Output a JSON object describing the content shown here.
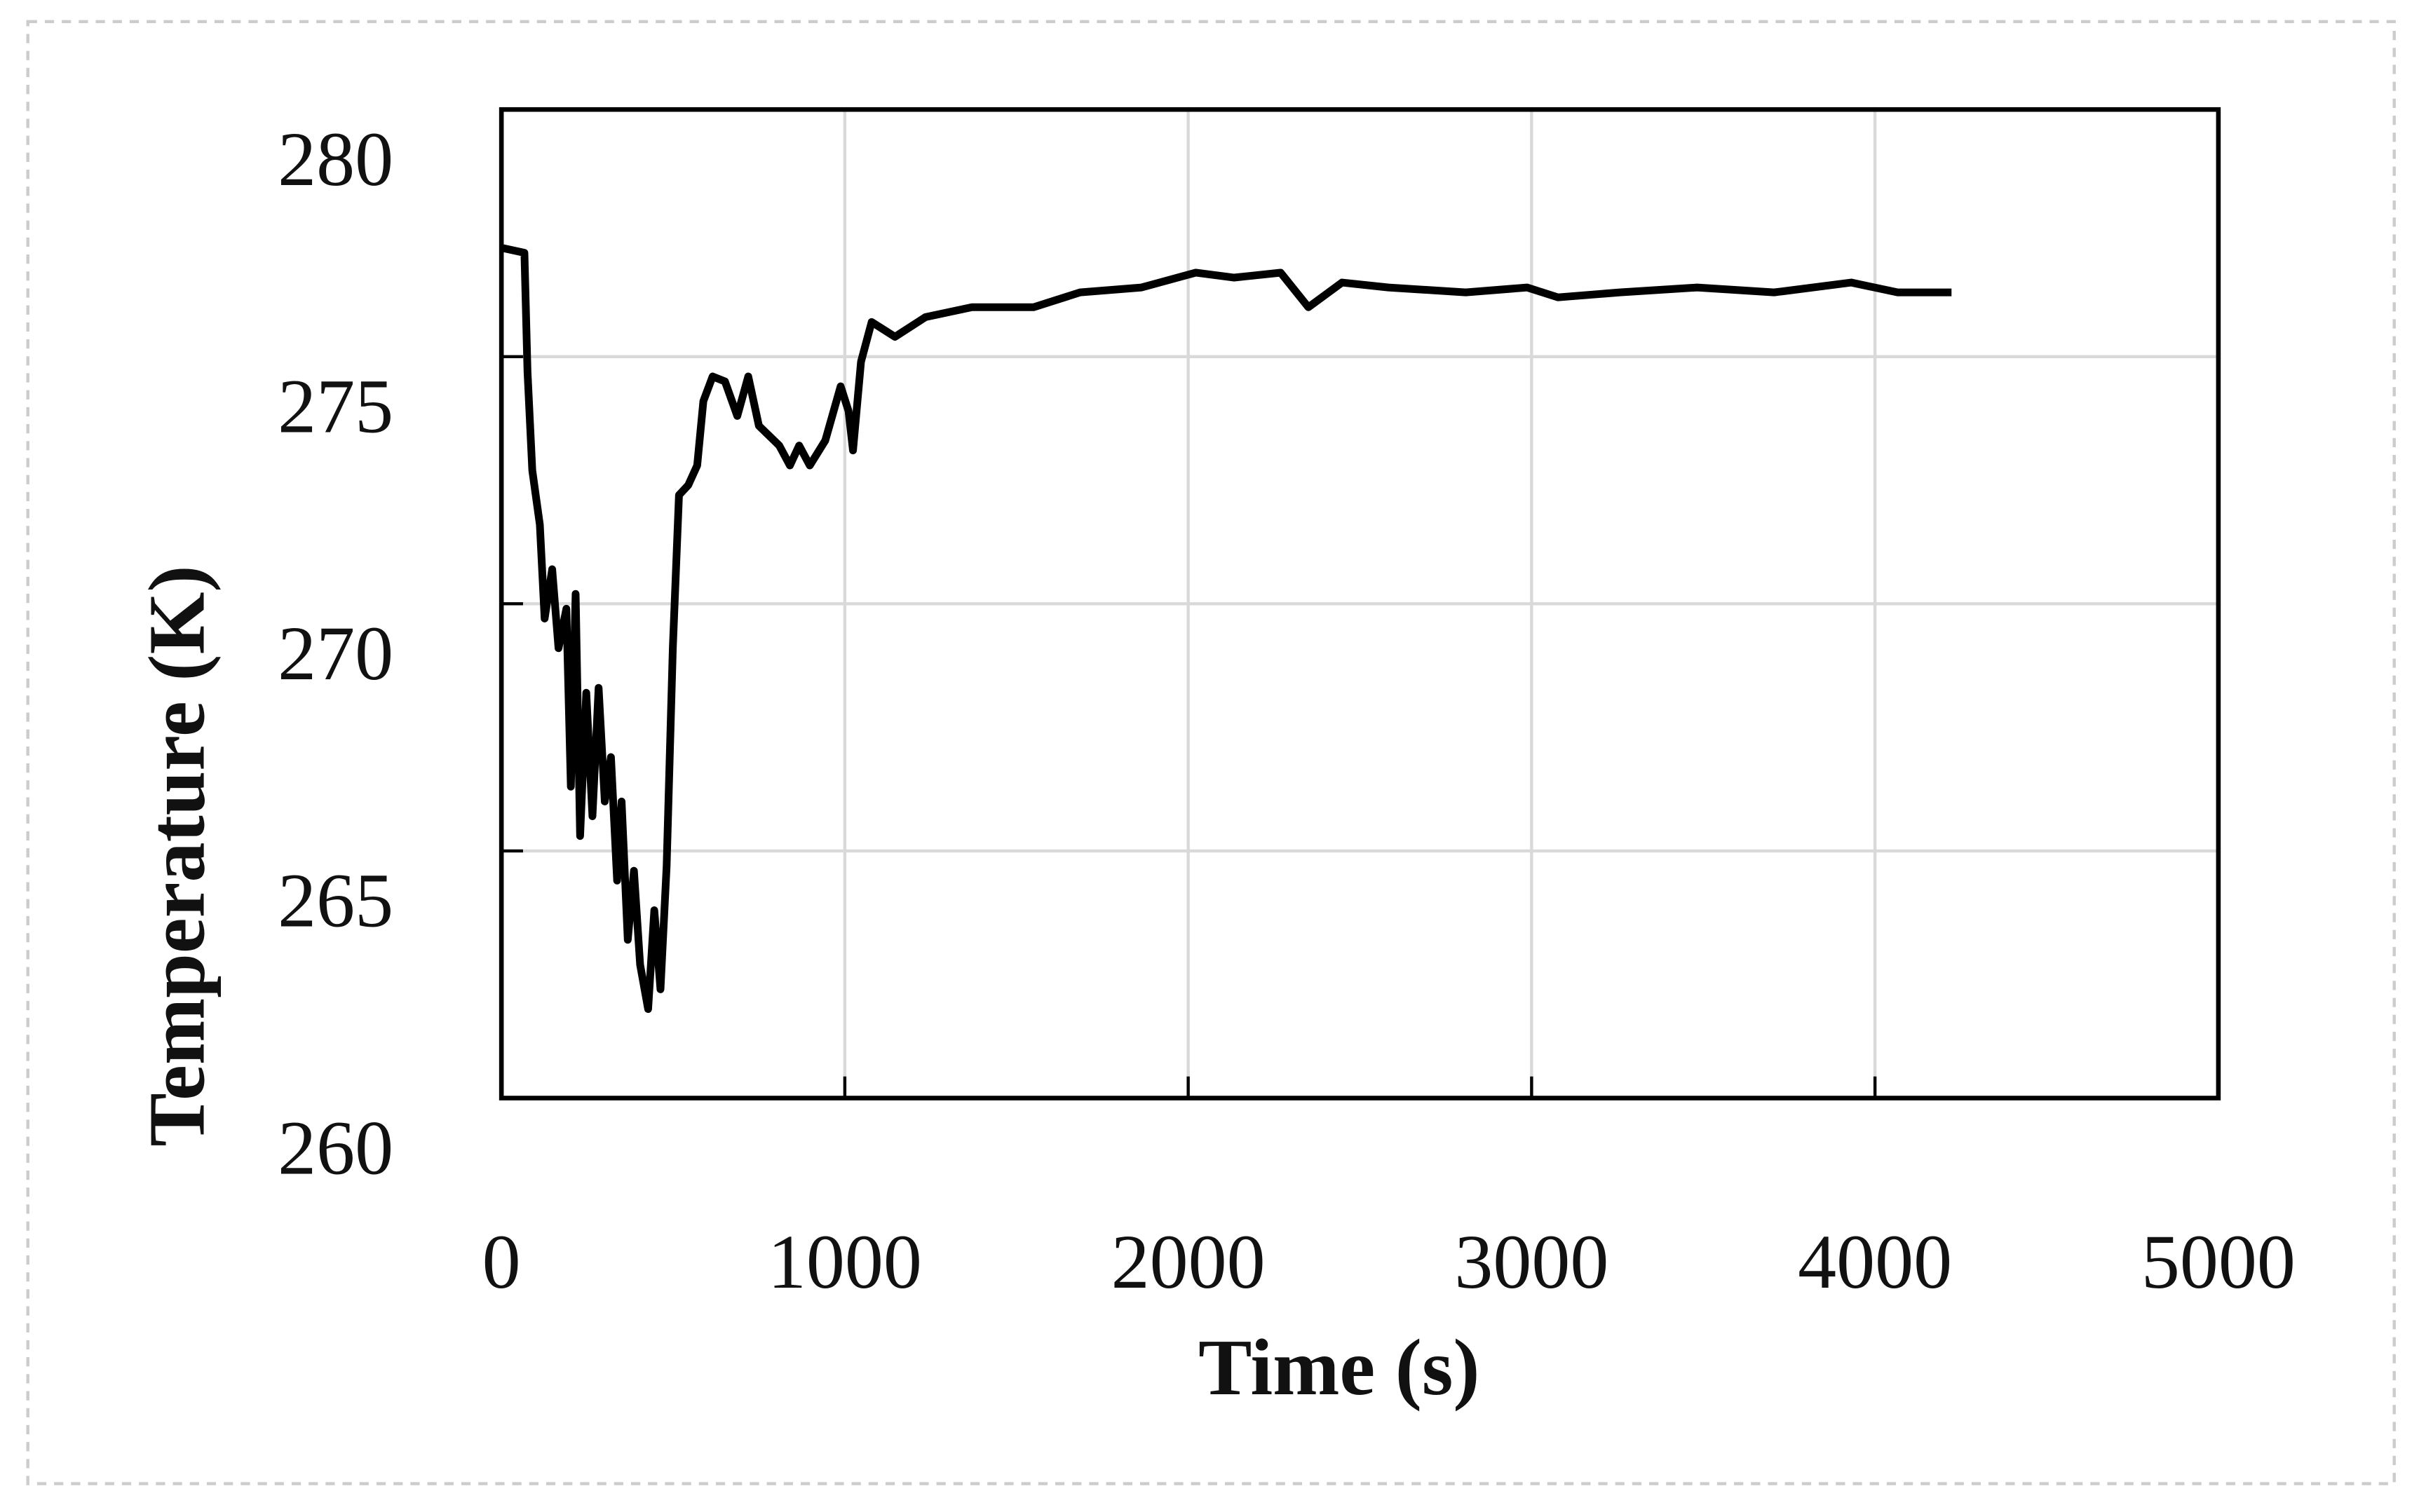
{
  "chart_data": {
    "type": "line",
    "x_label": "Time (s)",
    "y_label": "Temperature (K)",
    "xlim": [
      0,
      5000
    ],
    "xticks": [
      0,
      1000,
      2000,
      3000,
      4000,
      5000
    ],
    "ylim": [
      260,
      280
    ],
    "yticks": [
      260,
      265,
      270,
      275,
      280
    ],
    "grid": true,
    "series": [
      {
        "color": "#000000",
        "x": [
          0,
          67,
          76,
          90,
          112,
          126,
          148,
          166,
          189,
          202,
          216,
          229,
          247,
          265,
          283,
          301,
          319,
          337,
          350,
          368,
          386,
          404,
          427,
          445,
          463,
          481,
          499,
          517,
          544,
          570,
          588,
          615,
          651,
          687,
          719,
          750,
          809,
          840,
          867,
          898,
          943,
          988,
          1011,
          1024,
          1047,
          1078,
          1146,
          1235,
          1370,
          1550,
          1685,
          1864,
          2022,
          2134,
          2269,
          2350,
          2448,
          2583,
          2808,
          2987,
          3077,
          3257,
          3482,
          3706,
          3931,
          4066,
          4223
        ],
        "values": [
          277.2,
          277.1,
          274.7,
          272.7,
          271.6,
          269.7,
          270.7,
          269.1,
          269.9,
          266.3,
          270.2,
          265.3,
          268.2,
          265.7,
          268.3,
          266.0,
          266.9,
          264.4,
          266.0,
          263.2,
          264.6,
          262.7,
          261.8,
          263.8,
          262.2,
          264.7,
          269.1,
          272.2,
          272.4,
          272.8,
          274.1,
          274.6,
          274.5,
          273.8,
          274.6,
          273.6,
          273.2,
          272.8,
          273.2,
          272.8,
          273.3,
          274.4,
          273.9,
          273.1,
          274.9,
          275.7,
          275.4,
          275.8,
          276.0,
          276.0,
          276.3,
          276.4,
          276.7,
          276.6,
          276.7,
          276.0,
          276.5,
          276.4,
          276.3,
          276.4,
          276.2,
          276.3,
          276.4,
          276.3,
          276.5,
          276.3,
          276.3
        ]
      }
    ]
  }
}
